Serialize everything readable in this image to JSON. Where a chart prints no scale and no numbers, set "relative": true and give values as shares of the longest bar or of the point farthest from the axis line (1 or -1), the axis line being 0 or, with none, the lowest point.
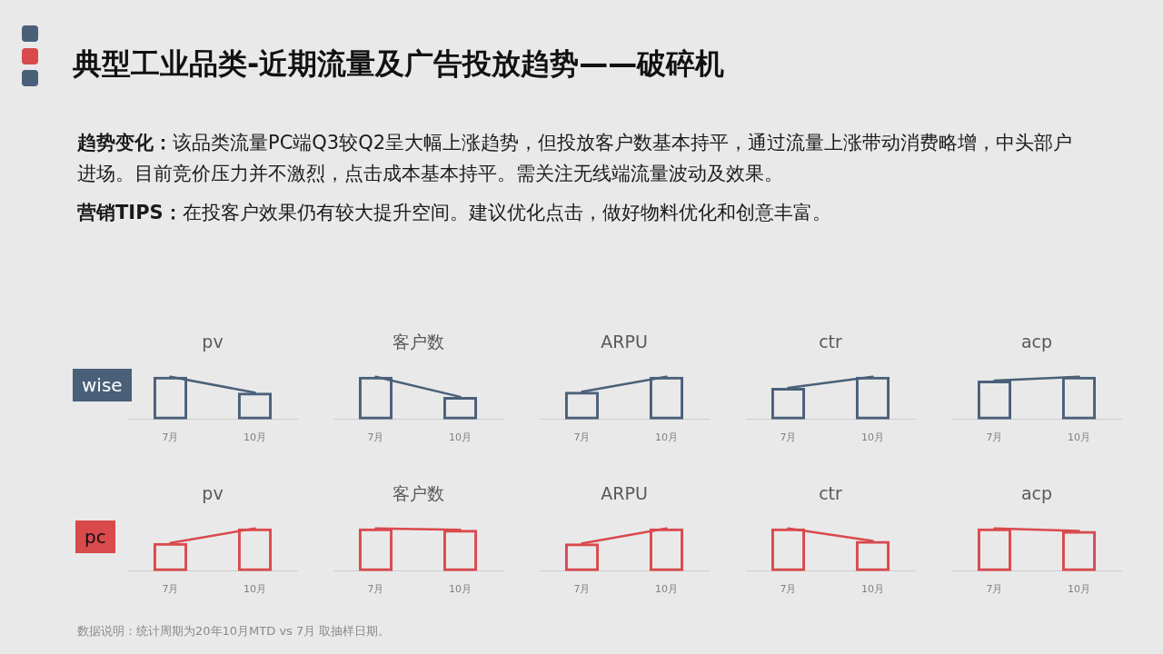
{
  "chart_data": [
    {
      "type": "other",
      "title": "典型工业品类-近期流量及广告投放趋势——破碎机",
      "annotations": [
        "趋势变化：该品类流量PC端Q3较Q2呈大幅上涨趋势，但投放客户数基本持平，通过流量上涨带动消费略增，中头部户进场。目前竞价压力并不激烈，点击成本基本持平。需关注无线端流量波动及效果。",
        "营销TIPS：在投客户效果仍有较大提升空间。建议优化点击，做好物料优化和创意丰富。",
        "数据说明：统计周期为20年10月MTD vs 7月 取抽样日期。"
      ]
    },
    {
      "type": "bar",
      "title": "pv",
      "ylabel": "wise",
      "categories": [
        "7月",
        "10月"
      ],
      "relative": true,
      "series": [
        {
          "color": "#4a6079",
          "values": [
            1,
            0.63
          ]
        },
        {
          "type": "line",
          "color": "#4a6079",
          "values": [
            1,
            0.63
          ]
        }
      ]
    },
    {
      "type": "bar",
      "title": "客户数",
      "categories": [
        "7月",
        "10月"
      ],
      "relative": true,
      "series": [
        {
          "color": "#4a6079",
          "values": [
            1,
            0.53
          ]
        },
        {
          "type": "line",
          "color": "#4a6079",
          "values": [
            1,
            0.53
          ]
        }
      ]
    },
    {
      "type": "bar",
      "title": "ARPU",
      "categories": [
        "7月",
        "10月"
      ],
      "relative": true,
      "series": [
        {
          "color": "#4a6079",
          "values": [
            0.65,
            1
          ]
        },
        {
          "type": "line",
          "color": "#4a6079",
          "values": [
            0.65,
            1
          ]
        }
      ]
    },
    {
      "type": "bar",
      "title": "ctr",
      "categories": [
        "7月",
        "10月"
      ],
      "relative": true,
      "series": [
        {
          "color": "#4a6079",
          "values": [
            0.74,
            1
          ]
        },
        {
          "type": "line",
          "color": "#4a6079",
          "values": [
            0.74,
            1
          ]
        }
      ]
    },
    {
      "type": "bar",
      "title": "acp",
      "categories": [
        "7月",
        "10月"
      ],
      "relative": true,
      "series": [
        {
          "color": "#4a6079",
          "values": [
            0.91,
            1
          ]
        },
        {
          "type": "line",
          "color": "#4a6079",
          "values": [
            0.91,
            1
          ]
        }
      ]
    },
    {
      "type": "bar",
      "title": "pv",
      "ylabel": "pc",
      "categories": [
        "7月",
        "10月"
      ],
      "relative": true,
      "series": [
        {
          "color": "#d94a4d",
          "values": [
            0.66,
            1
          ]
        },
        {
          "type": "line",
          "color": "#d94a4d",
          "values": [
            0.66,
            1
          ]
        }
      ]
    },
    {
      "type": "bar",
      "title": "客户数",
      "categories": [
        "7月",
        "10月"
      ],
      "relative": true,
      "series": [
        {
          "color": "#d94a4d",
          "values": [
            1,
            0.97
          ]
        },
        {
          "type": "line",
          "color": "#d94a4d",
          "values": [
            1,
            0.97
          ]
        }
      ]
    },
    {
      "type": "bar",
      "title": "ARPU",
      "categories": [
        "7月",
        "10月"
      ],
      "relative": true,
      "series": [
        {
          "color": "#d94a4d",
          "values": [
            0.65,
            1
          ]
        },
        {
          "type": "line",
          "color": "#d94a4d",
          "values": [
            0.65,
            1
          ]
        }
      ]
    },
    {
      "type": "bar",
      "title": "ctr",
      "categories": [
        "7月",
        "10月"
      ],
      "relative": true,
      "series": [
        {
          "color": "#d94a4d",
          "values": [
            1,
            0.71
          ]
        },
        {
          "type": "line",
          "color": "#d94a4d",
          "values": [
            1,
            0.71
          ]
        }
      ]
    },
    {
      "type": "bar",
      "title": "acp",
      "categories": [
        "7月",
        "10月"
      ],
      "relative": true,
      "series": [
        {
          "color": "#d94a4d",
          "values": [
            1,
            0.94
          ]
        },
        {
          "type": "line",
          "color": "#d94a4d",
          "values": [
            1,
            0.94
          ]
        }
      ]
    }
  ]
}
